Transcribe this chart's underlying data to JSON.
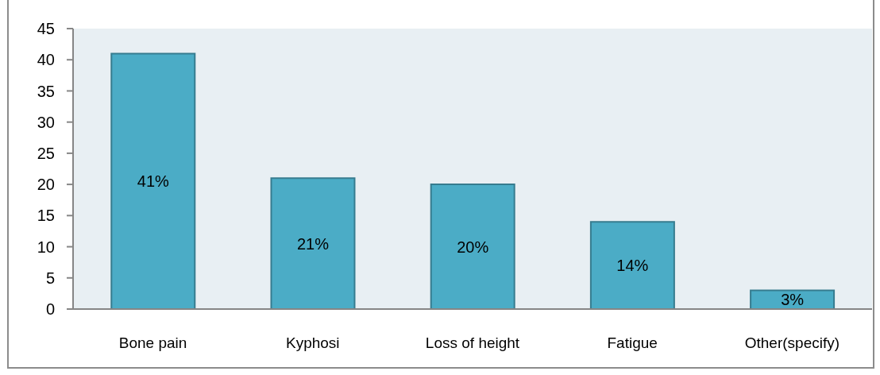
{
  "chart_data": {
    "type": "bar",
    "categories": [
      "Bone pain",
      "Kyphosi",
      "Loss of height",
      "Fatigue",
      "Other(specify)"
    ],
    "values": [
      41,
      21,
      20,
      14,
      3
    ],
    "color": "#4bacc6",
    "value_labels": [
      "41%",
      "21%",
      "20%",
      "14%",
      "3%"
    ],
    "ylim": [
      0,
      45
    ],
    "yticks": [
      0,
      5,
      10,
      15,
      20,
      25,
      30,
      35,
      40,
      45
    ]
  }
}
